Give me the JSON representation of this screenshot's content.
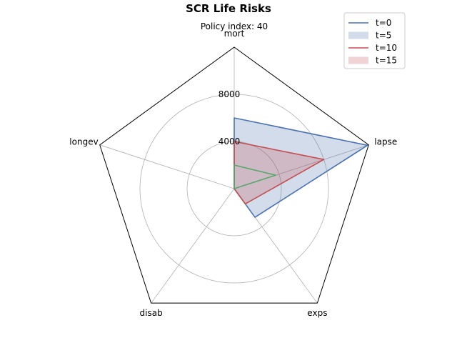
{
  "chart_data": {
    "type": "radar",
    "title": "SCR Life Risks",
    "subtitle": "Policy index: 40",
    "axes": [
      "mort",
      "lapse",
      "exps",
      "disab",
      "longev"
    ],
    "rlim": [
      0,
      12000
    ],
    "rticks": [
      4000,
      8000
    ],
    "rtick_labels": [
      "4000",
      "8000"
    ],
    "grid": true,
    "legend_position": "upper right",
    "series": [
      {
        "name": "t=0",
        "style": "line",
        "color": "#4c72b0",
        "values": [
          6000,
          11900,
          3000,
          0,
          0
        ]
      },
      {
        "name": "t=5",
        "style": "fill",
        "color": "#4c72b0",
        "values": [
          6000,
          11900,
          3000,
          0,
          0
        ]
      },
      {
        "name": "t=10",
        "style": "line",
        "color": "#c44e52",
        "values": [
          4000,
          8000,
          1600,
          0,
          0
        ]
      },
      {
        "name": "t=15",
        "style": "fill",
        "color": "#c44e52",
        "values": [
          4000,
          8000,
          1600,
          0,
          0
        ]
      },
      {
        "name": "",
        "style": "line",
        "color": "#55a868",
        "values": [
          2000,
          3700,
          0,
          0,
          0
        ]
      }
    ]
  }
}
